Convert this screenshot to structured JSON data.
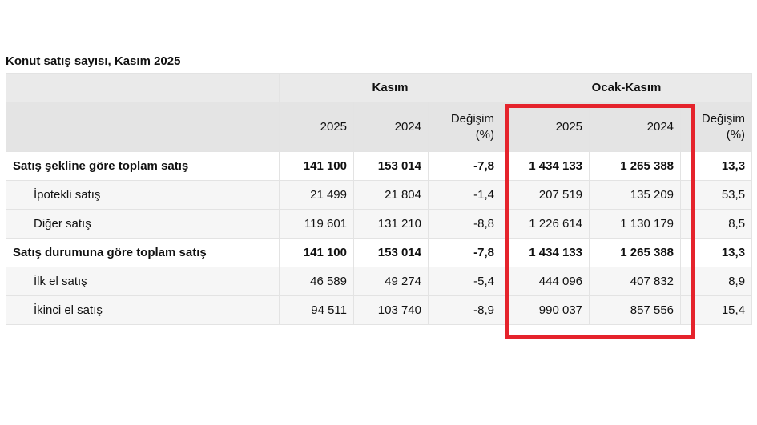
{
  "title": "Konut satış sayısı, Kasım 2025",
  "header": {
    "group_kasim": "Kasım",
    "group_ocak_kasim": "Ocak-Kasım",
    "col_2025": "2025",
    "col_2024": "2024",
    "col_degisim_line1": "Değişim",
    "col_degisim_line2": "(%)"
  },
  "rows": [
    {
      "label": "Satış şekline göre toplam satış",
      "k2025": "141 100",
      "k2024": "153 014",
      "kchg": "-7,8",
      "o2025": "1 434 133",
      "o2024": "1 265 388",
      "ochg": "13,3"
    },
    {
      "label": "İpotekli satış",
      "k2025": "21 499",
      "k2024": "21 804",
      "kchg": "-1,4",
      "o2025": "207 519",
      "o2024": "135 209",
      "ochg": "53,5"
    },
    {
      "label": "Diğer satış",
      "k2025": "119 601",
      "k2024": "131 210",
      "kchg": "-8,8",
      "o2025": "1 226 614",
      "o2024": "1 130 179",
      "ochg": "8,5"
    },
    {
      "label": "Satış durumuna göre toplam satış",
      "k2025": "141 100",
      "k2024": "153 014",
      "kchg": "-7,8",
      "o2025": "1 434 133",
      "o2024": "1 265 388",
      "ochg": "13,3"
    },
    {
      "label": "İlk el satış",
      "k2025": "46 589",
      "k2024": "49 274",
      "kchg": "-5,4",
      "o2025": "444 096",
      "o2024": "407 832",
      "ochg": "8,9"
    },
    {
      "label": "İkinci el satış",
      "k2025": "94 511",
      "k2024": "103 740",
      "kchg": "-8,9",
      "o2025": "990 037",
      "o2024": "857 556",
      "ochg": "15,4"
    }
  ],
  "highlight_color": "#e5232c"
}
